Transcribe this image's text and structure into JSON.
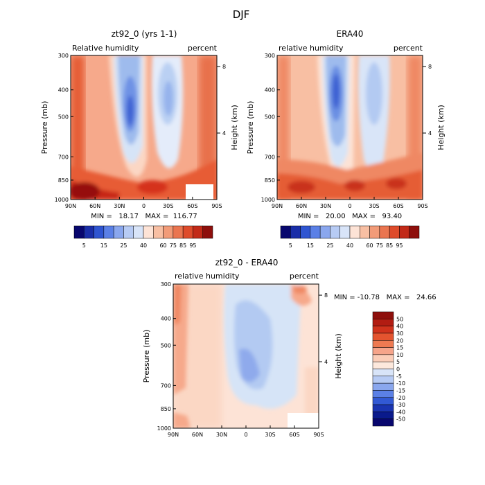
{
  "figure": {
    "title": "DJF"
  },
  "chart_data": [
    {
      "type": "heatmap",
      "title": "zt92_0 (yrs 1-1)",
      "subtitle_left": "Relative humidity",
      "subtitle_right": "percent",
      "ylabel": "Pressure (mb)",
      "ylabel_right": "Height (km)",
      "x_ticks": [
        "90N",
        "60N",
        "30N",
        "0",
        "30S",
        "60S",
        "90S"
      ],
      "y_ticks": [
        "300",
        "400",
        "500",
        "700",
        "850",
        "1000"
      ],
      "y_ticks_right": [
        "8",
        "4"
      ],
      "xlim": [
        90,
        -90
      ],
      "ylim": [
        1000,
        300
      ],
      "stats": "MIN =   18.17   MAX =  116.77",
      "colorbar": {
        "orientation": "horizontal",
        "tick_labels": [
          "5",
          "15",
          "25",
          "40",
          "60",
          "75",
          "85",
          "95"
        ]
      },
      "features": [
        {
          "kind": "blob",
          "lat": 18,
          "p": 520,
          "value": 15
        },
        {
          "kind": "blob",
          "lat": -25,
          "p": 480,
          "value": 35
        },
        {
          "kind": "blob",
          "lat": 80,
          "p": 950,
          "value": 95
        },
        {
          "kind": "blob",
          "lat": -75,
          "p": 400,
          "value": 80
        }
      ]
    },
    {
      "type": "heatmap",
      "title": "ERA40",
      "subtitle_left": "relative humidity",
      "subtitle_right": "percent",
      "ylabel": "Pressure (mb)",
      "ylabel_right": "Height (km)",
      "x_ticks": [
        "90N",
        "60N",
        "30N",
        "0",
        "30S",
        "60S",
        "90S"
      ],
      "y_ticks": [
        "300",
        "400",
        "500",
        "700",
        "850",
        "1000"
      ],
      "y_ticks_right": [
        "8",
        "4"
      ],
      "xlim": [
        90,
        -90
      ],
      "ylim": [
        1000,
        300
      ],
      "stats": "MIN =   20.00   MAX =   93.40",
      "colorbar": {
        "orientation": "horizontal",
        "tick_labels": [
          "5",
          "15",
          "25",
          "40",
          "60",
          "75",
          "85",
          "95"
        ]
      },
      "features": [
        {
          "kind": "blob",
          "lat": 18,
          "p": 450,
          "value": 20
        },
        {
          "kind": "blob",
          "lat": -25,
          "p": 500,
          "value": 45
        },
        {
          "kind": "blob",
          "lat": 55,
          "p": 950,
          "value": 85
        },
        {
          "kind": "blob",
          "lat": -55,
          "p": 950,
          "value": 85
        }
      ]
    },
    {
      "type": "heatmap",
      "title": "zt92_0 - ERA40",
      "subtitle_left": "relative humidity",
      "subtitle_right": "percent",
      "ylabel": "Pressure (mb)",
      "ylabel_right": "Height (km)",
      "x_ticks": [
        "90N",
        "60N",
        "30N",
        "0",
        "30S",
        "60S",
        "90S"
      ],
      "y_ticks": [
        "300",
        "400",
        "500",
        "700",
        "850",
        "1000"
      ],
      "y_ticks_right": [
        "8",
        "4"
      ],
      "xlim": [
        90,
        -90
      ],
      "ylim": [
        1000,
        300
      ],
      "stats": "MIN = -10.78   MAX =   24.66",
      "colorbar": {
        "orientation": "vertical",
        "tick_labels": [
          "50",
          "40",
          "30",
          "20",
          "15",
          "10",
          "5",
          "0",
          "-5",
          "-10",
          "-15",
          "-20",
          "-30",
          "-40",
          "-50"
        ]
      },
      "features": [
        {
          "kind": "blob",
          "lat": 5,
          "p": 700,
          "value": -10
        },
        {
          "kind": "blob",
          "lat": -55,
          "p": 320,
          "value": 25
        },
        {
          "kind": "blob",
          "lat": 85,
          "p": 350,
          "value": 20
        }
      ]
    }
  ]
}
